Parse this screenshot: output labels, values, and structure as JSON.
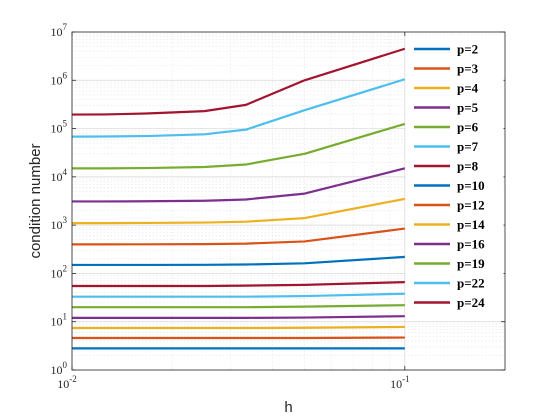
{
  "chart_data": {
    "type": "line",
    "title": "",
    "xlabel": "h",
    "ylabel": "condition number",
    "x_scale": "log",
    "y_scale": "log",
    "xlim": [
      0.01,
      0.2
    ],
    "ylim": [
      1,
      10000000
    ],
    "x_ticks": [
      {
        "value": 0.01,
        "base": "10",
        "exp": "-2"
      },
      {
        "value": 0.1,
        "base": "10",
        "exp": "-1"
      }
    ],
    "y_ticks": [
      {
        "value": 1,
        "base": "10",
        "exp": "0"
      },
      {
        "value": 10,
        "base": "10",
        "exp": "1"
      },
      {
        "value": 100,
        "base": "10",
        "exp": "2"
      },
      {
        "value": 1000,
        "base": "10",
        "exp": "3"
      },
      {
        "value": 10000,
        "base": "10",
        "exp": "4"
      },
      {
        "value": 100000,
        "base": "10",
        "exp": "5"
      },
      {
        "value": 1000000,
        "base": "10",
        "exp": "6"
      },
      {
        "value": 10000000,
        "base": "10",
        "exp": "7"
      }
    ],
    "grid": true,
    "minor_grid": true,
    "legend_position": "right",
    "x": [
      0.01,
      0.0125,
      0.0167,
      0.025,
      0.0333,
      0.05,
      0.1
    ],
    "series": [
      {
        "name": "p=2",
        "color": "#0072BD",
        "values": [
          2.8,
          2.8,
          2.8,
          2.8,
          2.8,
          2.8,
          2.8
        ]
      },
      {
        "name": "p=3",
        "color": "#D95319",
        "values": [
          4.6,
          4.6,
          4.6,
          4.6,
          4.6,
          4.6,
          4.7
        ]
      },
      {
        "name": "p=4",
        "color": "#EDB120",
        "values": [
          7.4,
          7.4,
          7.4,
          7.4,
          7.4,
          7.5,
          7.8
        ]
      },
      {
        "name": "p=5",
        "color": "#7E2F8E",
        "values": [
          12,
          12,
          12,
          12,
          12,
          12.2,
          13
        ]
      },
      {
        "name": "p=6",
        "color": "#77AC30",
        "values": [
          20,
          20,
          20,
          20,
          20,
          20.5,
          22
        ]
      },
      {
        "name": "p=7",
        "color": "#4DBEEE",
        "values": [
          33,
          33,
          33,
          33,
          33,
          34,
          38
        ]
      },
      {
        "name": "p=8",
        "color": "#A2142F",
        "values": [
          55,
          55,
          55,
          55,
          56,
          58,
          66
        ]
      },
      {
        "name": "p=10",
        "color": "#0072BD",
        "values": [
          150,
          150,
          150,
          151,
          153,
          162,
          220
        ]
      },
      {
        "name": "p=12",
        "color": "#D95319",
        "values": [
          400,
          400,
          401,
          405,
          415,
          460,
          850
        ]
      },
      {
        "name": "p=14",
        "color": "#EDB120",
        "values": [
          1100,
          1100,
          1110,
          1130,
          1180,
          1400,
          3500
        ]
      },
      {
        "name": "p=16",
        "color": "#7E2F8E",
        "values": [
          3100,
          3100,
          3120,
          3200,
          3400,
          4500,
          15000
        ]
      },
      {
        "name": "p=19",
        "color": "#77AC30",
        "values": [
          15000,
          15000,
          15200,
          16000,
          18000,
          30000,
          125000
        ]
      },
      {
        "name": "p=22",
        "color": "#4DBEEE",
        "values": [
          68000,
          68500,
          70000,
          76000,
          95000,
          240000,
          1050000
        ]
      },
      {
        "name": "p=24",
        "color": "#A2142F",
        "values": [
          195000,
          196000,
          205000,
          230000,
          310000,
          1000000,
          4500000
        ]
      }
    ]
  }
}
